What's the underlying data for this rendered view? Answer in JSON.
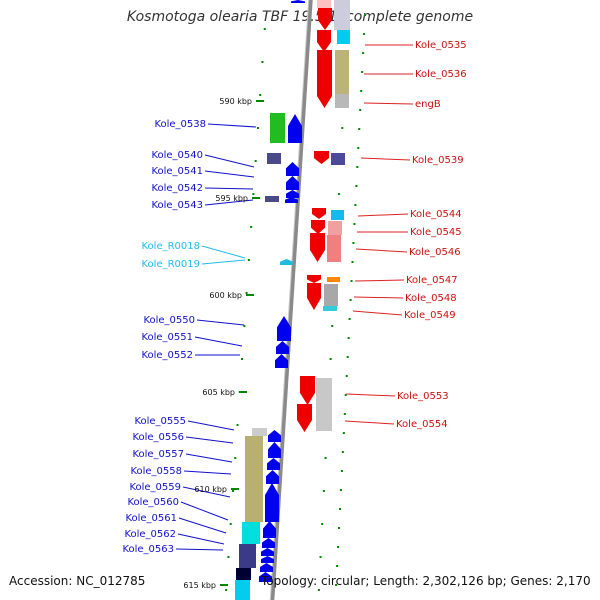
{
  "title": "Kosmotoga olearia TBF 19.5.1, complete genome",
  "footer": {
    "accession": "Accession: NC_012785",
    "summary": "Topology: circular; Length: 2,302,126 bp; Genes: 2,170"
  },
  "colors": {
    "forward_gene": "#0000ee",
    "reverse_gene": "#ee0000",
    "rna_gene": "#22bbdd",
    "backbone": "#8a8a8a",
    "ticks": "#008800"
  },
  "scale_labels": [
    "590 kbp",
    "595 kbp",
    "600 kbp",
    "605 kbp",
    "610 kbp",
    "615 kbp"
  ],
  "left_labels": [
    "Kole_0538",
    "Kole_0540",
    "Kole_0541",
    "Kole_0542",
    "Kole_0543",
    "Kole_R0018",
    "Kole_R0019",
    "Kole_0550",
    "Kole_0551",
    "Kole_0552",
    "Kole_0555",
    "Kole_0556",
    "Kole_0557",
    "Kole_0558",
    "Kole_0559",
    "Kole_0560",
    "Kole_0561",
    "Kole_0562",
    "Kole_0563"
  ],
  "right_labels": [
    "Kole_0535",
    "Kole_0536",
    "engB",
    "Kole_0539",
    "Kole_0544",
    "Kole_0545",
    "Kole_0546",
    "Kole_0547",
    "Kole_0548",
    "Kole_0549",
    "Kole_0553",
    "Kole_0554"
  ]
}
